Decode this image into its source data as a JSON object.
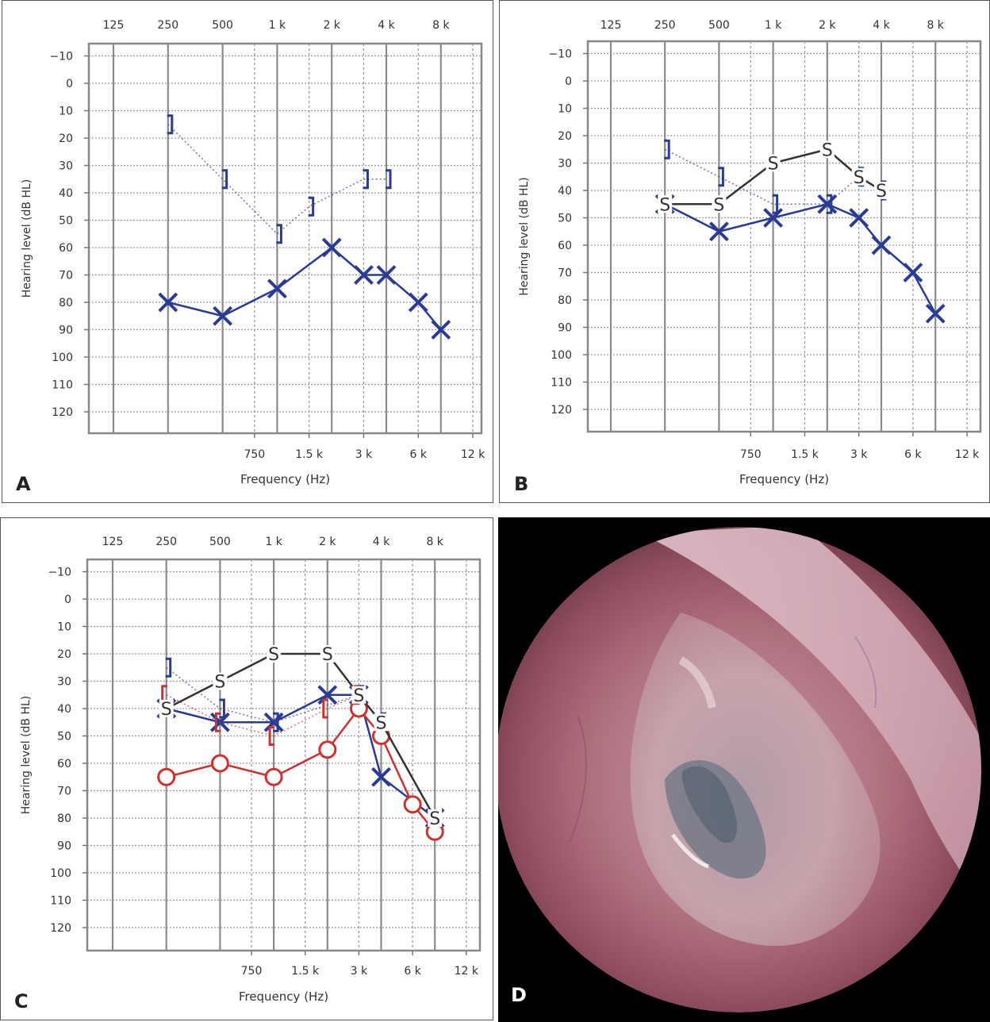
{
  "common": {
    "ylabel": "Hearing level (dB HL)",
    "xlabel": "Frequency (Hz)",
    "top_ticks": [
      "125",
      "250",
      "500",
      "1 k",
      "2 k",
      "4 k",
      "8 k"
    ],
    "bottom_ticks": [
      "750",
      "1.5 k",
      "3 k",
      "6 k",
      "12 k"
    ],
    "y_ticks": [
      "−10",
      "0",
      "10",
      "20",
      "30",
      "40",
      "50",
      "60",
      "70",
      "80",
      "90",
      "100",
      "110",
      "120"
    ]
  },
  "photo": {
    "letter": "D"
  },
  "chart_data": [
    {
      "type": "line",
      "letter": "A",
      "ylim": [
        -10,
        120
      ],
      "y_inverted": true,
      "x_scale": "log2 (octave) frequency axis",
      "series": [
        {
          "symbol": "X",
          "color": "#2a3b96",
          "line": "solid",
          "x": [
            250,
            500,
            1000,
            2000,
            3000,
            4000,
            6000,
            8000
          ],
          "y": [
            80,
            85,
            75,
            60,
            70,
            70,
            80,
            90
          ]
        },
        {
          "symbol": "]",
          "color": "#2a3b96",
          "line": "dotted",
          "x": [
            250,
            500,
            1000,
            1500,
            3000,
            4000
          ],
          "y": [
            15,
            35,
            55,
            45,
            35,
            35
          ]
        }
      ]
    },
    {
      "type": "line",
      "letter": "B",
      "ylim": [
        -10,
        120
      ],
      "y_inverted": true,
      "x_scale": "log2 (octave) frequency axis",
      "series": [
        {
          "symbol": "X",
          "color": "#2a3b96",
          "line": "solid",
          "x": [
            250,
            500,
            1000,
            2000,
            3000,
            4000,
            6000,
            8000
          ],
          "y": [
            45,
            55,
            50,
            45,
            50,
            60,
            70,
            85
          ]
        },
        {
          "symbol": "]",
          "color": "#2a3b96",
          "line": "dotted",
          "x": [
            250,
            500,
            1000,
            2000,
            3000,
            4000
          ],
          "y": [
            25,
            35,
            45,
            45,
            35,
            40
          ]
        },
        {
          "symbol": "S",
          "color": "#333333",
          "line": "solid",
          "x": [
            250,
            500,
            1000,
            2000,
            3000,
            4000
          ],
          "y": [
            45,
            45,
            30,
            25,
            35,
            40
          ]
        }
      ]
    },
    {
      "type": "line",
      "letter": "C",
      "ylim": [
        -10,
        120
      ],
      "y_inverted": true,
      "x_scale": "log2 (octave) frequency axis",
      "series": [
        {
          "symbol": "X",
          "color": "#2a3b96",
          "line": "solid",
          "x": [
            250,
            500,
            1000,
            2000,
            3000,
            4000,
            8000
          ],
          "y": [
            40,
            45,
            45,
            35,
            35,
            65,
            80
          ]
        },
        {
          "symbol": "]",
          "color": "#2a3b96",
          "line": "dotted",
          "x": [
            250,
            500,
            1000,
            3000,
            4000
          ],
          "y": [
            25,
            40,
            45,
            35,
            45
          ]
        },
        {
          "symbol": "O",
          "color": "#d0312d",
          "line": "solid",
          "x": [
            250,
            500,
            1000,
            2000,
            3000,
            4000,
            6000,
            8000
          ],
          "y": [
            65,
            60,
            65,
            55,
            40,
            50,
            75,
            85
          ]
        },
        {
          "symbol": "[",
          "color": "#d0312d",
          "line": "dotted",
          "x": [
            250,
            500,
            1000,
            2000,
            3000
          ],
          "y": [
            35,
            45,
            50,
            40,
            35
          ]
        },
        {
          "symbol": "S",
          "color": "#333333",
          "line": "solid",
          "x": [
            250,
            500,
            1000,
            2000,
            3000,
            4000,
            8000
          ],
          "y": [
            40,
            30,
            20,
            20,
            35,
            45,
            80
          ]
        }
      ]
    }
  ]
}
